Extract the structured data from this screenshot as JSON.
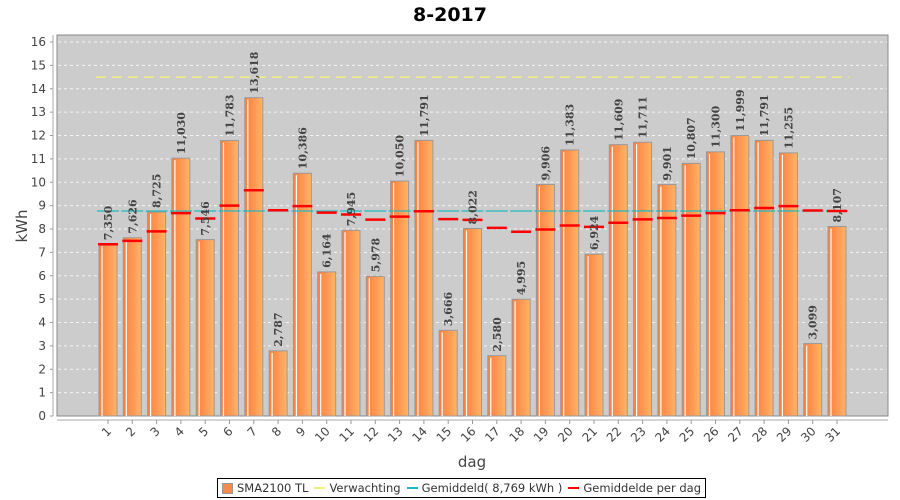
{
  "chart_data": {
    "type": "bar",
    "title": "8-2017",
    "xlabel": "dag",
    "ylabel": "kWh",
    "ylim": [
      0,
      16
    ],
    "yticks": [
      0,
      1,
      2,
      3,
      4,
      5,
      6,
      7,
      8,
      9,
      10,
      11,
      12,
      13,
      14,
      15,
      16
    ],
    "grid": true,
    "legend_position": "bottom",
    "categories": [
      "1",
      "2",
      "3",
      "4",
      "5",
      "6",
      "7",
      "8",
      "9",
      "10",
      "11",
      "12",
      "13",
      "14",
      "15",
      "16",
      "17",
      "18",
      "19",
      "20",
      "21",
      "22",
      "23",
      "24",
      "25",
      "26",
      "27",
      "28",
      "29",
      "30",
      "31"
    ],
    "series": [
      {
        "name": "SMA2100 TL",
        "kind": "bar",
        "color": "#f58a4b",
        "values": [
          7.35,
          7.626,
          8.725,
          11.03,
          7.546,
          11.783,
          13.618,
          2.787,
          10.386,
          6.164,
          7.945,
          5.978,
          10.05,
          11.791,
          3.666,
          8.022,
          2.58,
          4.995,
          9.906,
          11.383,
          6.924,
          11.609,
          11.711,
          9.901,
          10.807,
          11.3,
          11.999,
          11.791,
          11.255,
          3.099,
          8.107
        ],
        "labels": [
          "7,350",
          "7,626",
          "8,725",
          "11,030",
          "7,546",
          "11,783",
          "13,618",
          "2,787",
          "10,386",
          "6,164",
          "7,945",
          "5,978",
          "10,050",
          "11,791",
          "3,666",
          "8,022",
          "2,580",
          "4,995",
          "9,906",
          "11,383",
          "6,924",
          "11,609",
          "11,711",
          "9,901",
          "10,807",
          "11,300",
          "11,999",
          "11,791",
          "11,255",
          "3,099",
          "8,107"
        ]
      },
      {
        "name": "Verwachting",
        "kind": "dashed-line",
        "color": "#f0f080",
        "value": 14.5
      },
      {
        "name": "Gemiddeld( 8,769 kWh )",
        "kind": "dashed-line",
        "color": "#20b8c0",
        "value": 8.769
      },
      {
        "name": "Gemiddelde per dag",
        "kind": "marker",
        "color": "#ff0000",
        "values": [
          7.35,
          7.49,
          7.9,
          8.68,
          8.45,
          9.0,
          9.66,
          8.8,
          8.98,
          8.7,
          8.62,
          8.4,
          8.53,
          8.76,
          8.42,
          8.39,
          8.05,
          7.88,
          7.98,
          8.15,
          8.09,
          8.27,
          8.41,
          8.47,
          8.57,
          8.68,
          8.8,
          8.9,
          8.98,
          8.79,
          8.77
        ]
      }
    ]
  },
  "legend": {
    "items": [
      {
        "label": "SMA2100 TL",
        "color": "#f58a4b",
        "kind": "box"
      },
      {
        "label": "Verwachting",
        "color": "#f0f080",
        "kind": "line"
      },
      {
        "label": "Gemiddeld( 8,769 kWh )",
        "color": "#20b8c0",
        "kind": "line"
      },
      {
        "label": "Gemiddelde per dag",
        "color": "#ff0000",
        "kind": "line"
      }
    ]
  }
}
